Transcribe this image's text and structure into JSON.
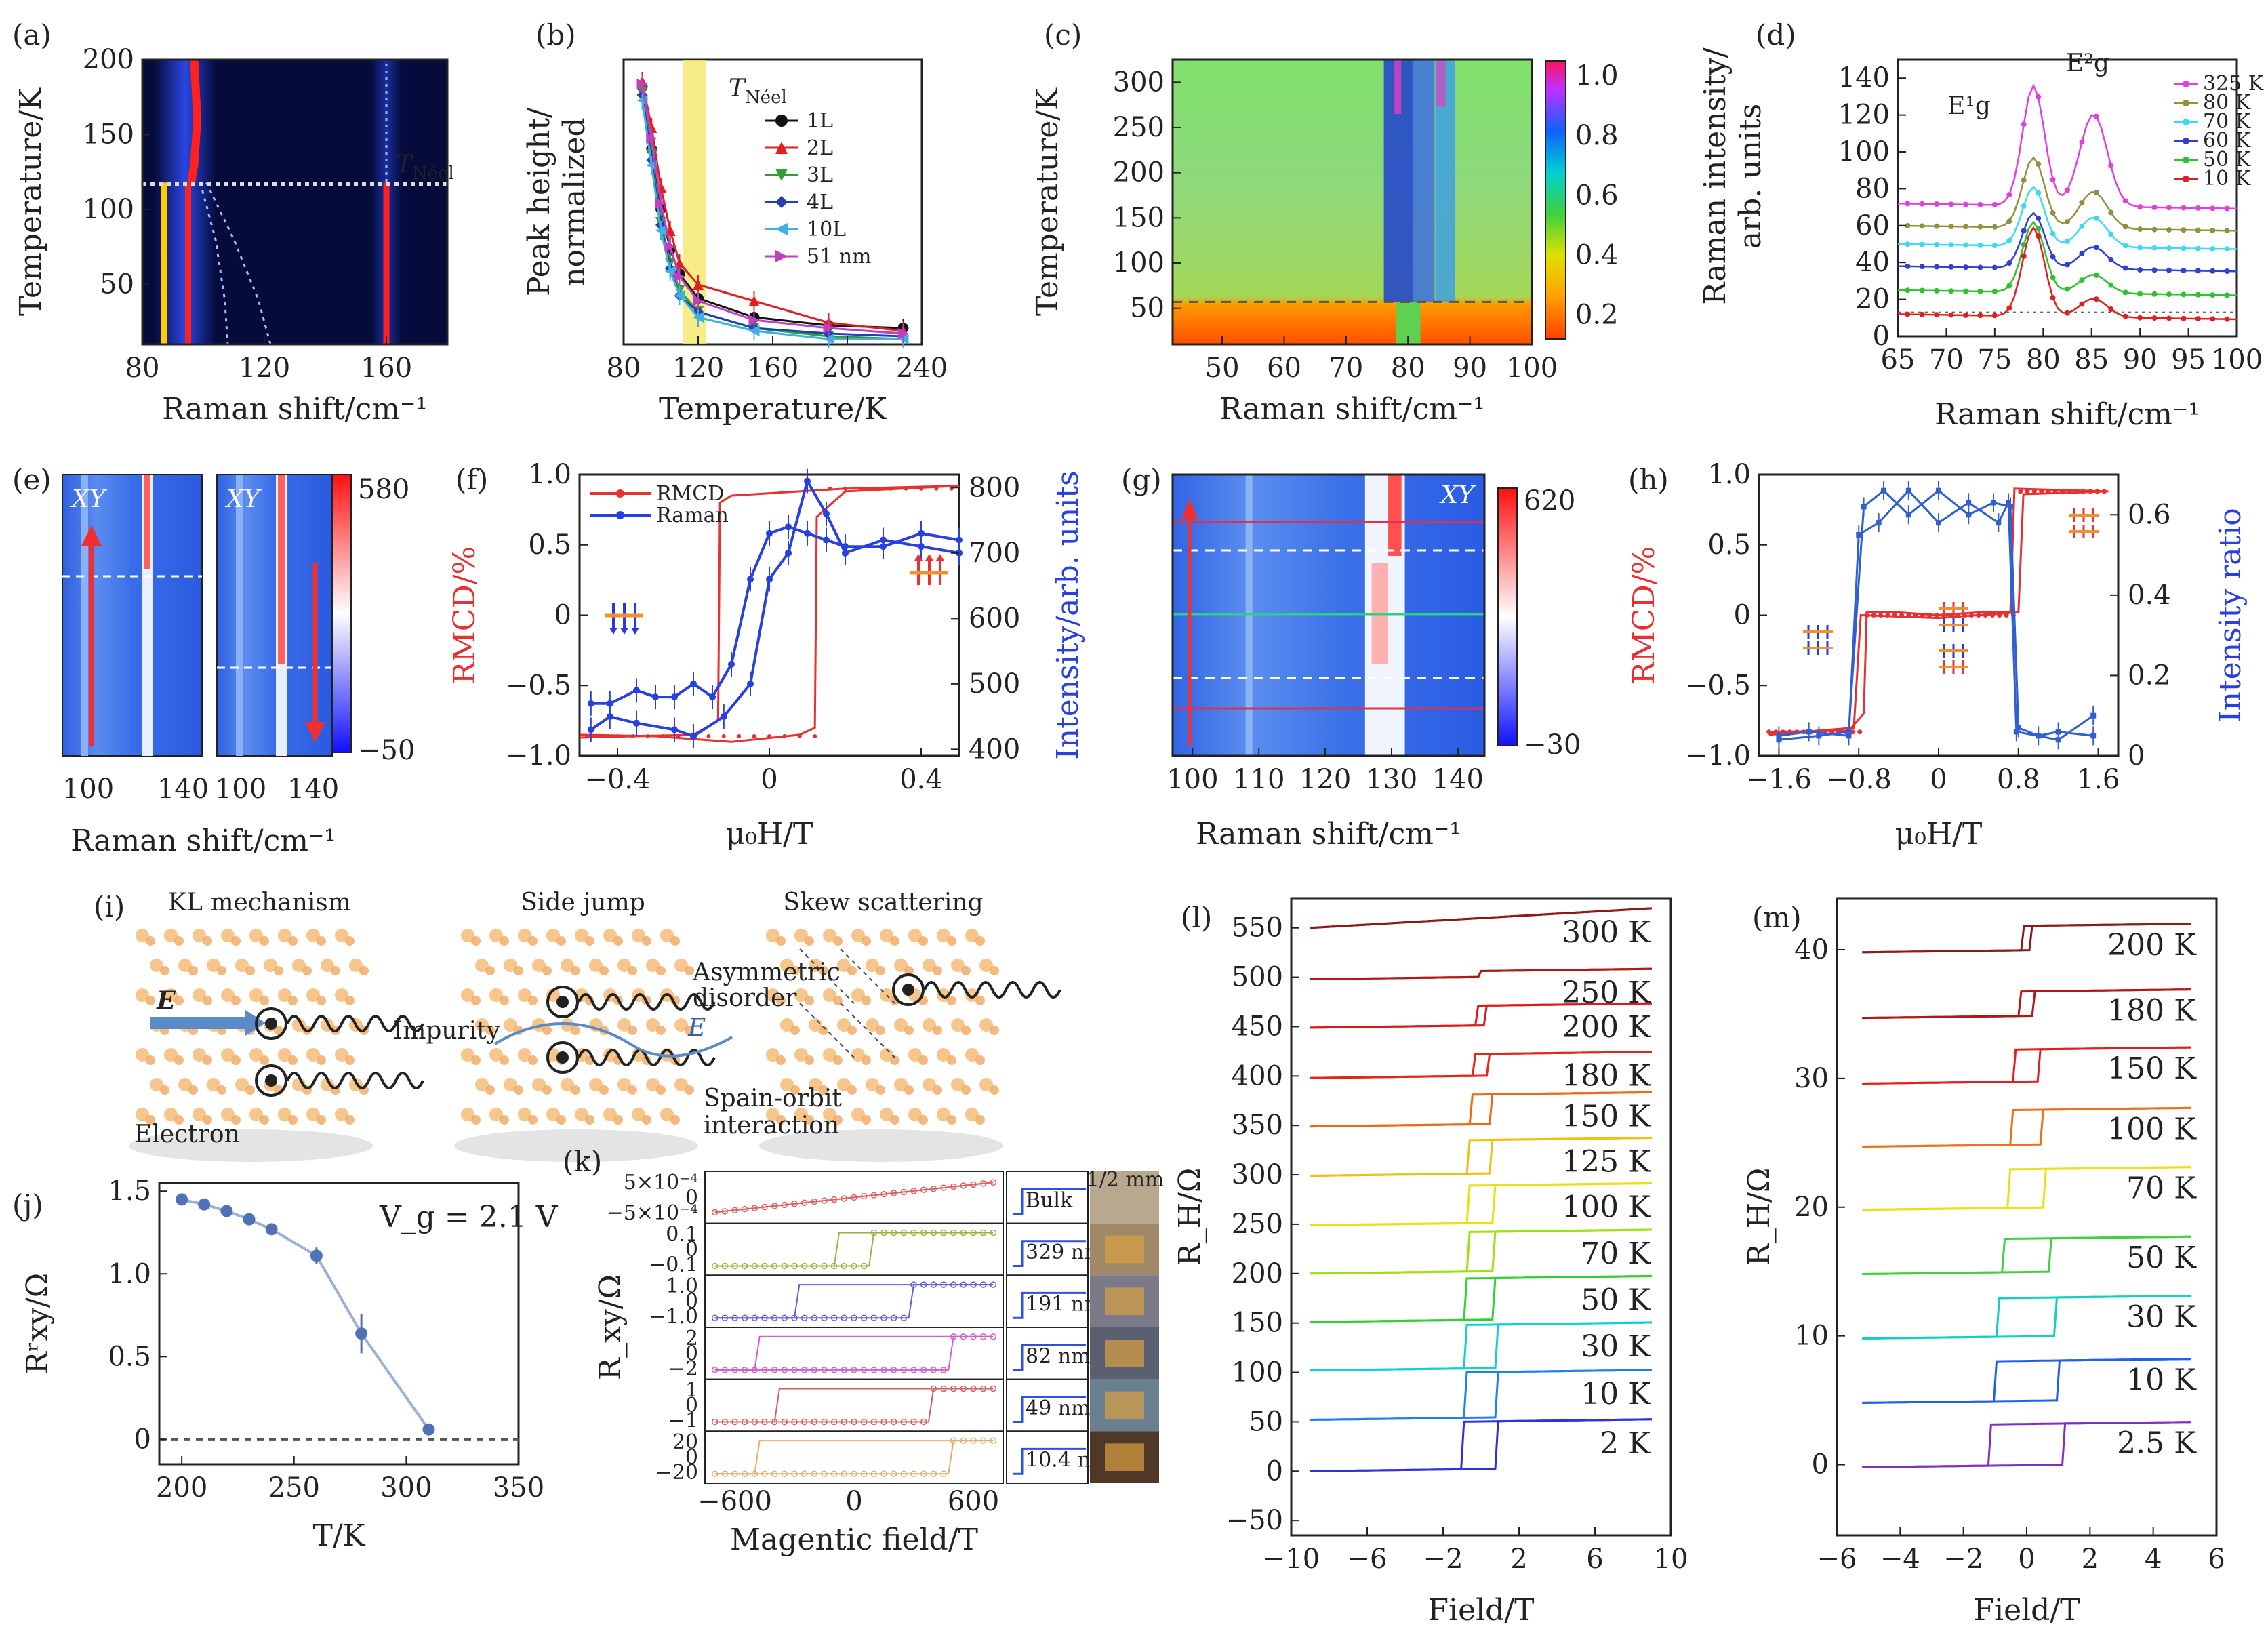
{
  "figure": {
    "background": "#ffffff"
  },
  "chart_data": [
    {
      "panel": "(a)",
      "type": "heatmap",
      "xlabel": "Raman shift/cm⁻¹",
      "ylabel": "Temperature/K",
      "xlim": [
        80,
        180
      ],
      "ylim": [
        10,
        200
      ],
      "xticks": [
        80,
        120,
        160
      ],
      "yticks": [
        50,
        100,
        150,
        200
      ],
      "annotation": "T_Néel",
      "lines": [
        {
          "kind": "vertical",
          "x": 87,
          "y_range": [
            10,
            118
          ],
          "color": "#ffcc00"
        },
        {
          "kind": "vertical",
          "x": 95,
          "y_range": [
            10,
            118
          ],
          "color": "#ff2020"
        },
        {
          "kind": "curve",
          "points": [
            [
              97,
              200
            ],
            [
              98,
              160
            ],
            [
              97,
              130
            ],
            [
              96,
              118
            ]
          ],
          "color": "#ff2020"
        },
        {
          "kind": "dashed-curve",
          "points": [
            [
              99,
              118
            ],
            [
              104,
              80
            ],
            [
              107,
              40
            ],
            [
              108,
              10
            ]
          ],
          "color": "#aab8ff"
        },
        {
          "kind": "dashed-curve",
          "points": [
            [
              101,
              118
            ],
            [
              110,
              80
            ],
            [
              118,
              40
            ],
            [
              122,
              10
            ]
          ],
          "color": "#aab8ff"
        },
        {
          "kind": "vertical-dashed",
          "x": 160,
          "y_range": [
            10,
            200
          ],
          "color": "#aab8ff"
        },
        {
          "kind": "vertical",
          "x": 160,
          "y_range": [
            10,
            118
          ],
          "color": "#ff2020"
        },
        {
          "kind": "horizontal-dotted",
          "y": 117,
          "color": "#dddddd"
        }
      ]
    },
    {
      "panel": "(b)",
      "type": "line",
      "xlabel": "Temperature/K",
      "ylabel": "Peak height/ normalized",
      "xlim": [
        80,
        240
      ],
      "ylim": [
        0,
        1
      ],
      "xticks": [
        80,
        120,
        160,
        200,
        240
      ],
      "annotation": "T_Néel",
      "series": [
        {
          "name": "1L",
          "color": "#111111",
          "marker": "circle",
          "x": [
            90,
            95,
            100,
            105,
            110,
            120,
            150,
            190,
            230
          ],
          "y": [
            0.95,
            0.72,
            0.5,
            0.35,
            0.26,
            0.17,
            0.1,
            0.07,
            0.06
          ]
        },
        {
          "name": "2L",
          "color": "#e02020",
          "marker": "triangle",
          "x": [
            90,
            95,
            100,
            105,
            110,
            120,
            150,
            190,
            230
          ],
          "y": [
            0.97,
            0.8,
            0.58,
            0.42,
            0.3,
            0.22,
            0.16,
            0.08,
            0.05
          ]
        },
        {
          "name": "3L",
          "color": "#30a030",
          "marker": "triangle-down",
          "x": [
            90,
            95,
            100,
            105,
            110,
            120,
            150,
            190,
            230
          ],
          "y": [
            0.93,
            0.7,
            0.45,
            0.3,
            0.2,
            0.12,
            0.06,
            0.03,
            0.02
          ]
        },
        {
          "name": "4L",
          "color": "#2040b0",
          "marker": "diamond",
          "x": [
            90,
            95,
            100,
            105,
            110,
            120,
            150,
            190,
            230
          ],
          "y": [
            0.92,
            0.68,
            0.44,
            0.28,
            0.18,
            0.12,
            0.06,
            0.04,
            0.03
          ]
        },
        {
          "name": "10L",
          "color": "#40b0e0",
          "marker": "triangle-left",
          "x": [
            90,
            95,
            100,
            105,
            110,
            120,
            150,
            190,
            230
          ],
          "y": [
            0.9,
            0.66,
            0.42,
            0.27,
            0.18,
            0.1,
            0.05,
            0.02,
            0.02
          ]
        },
        {
          "name": "51 nm",
          "color": "#c040c0",
          "marker": "triangle-right",
          "x": [
            90,
            95,
            100,
            105,
            110,
            120,
            150,
            190,
            230
          ],
          "y": [
            0.96,
            0.76,
            0.52,
            0.36,
            0.25,
            0.16,
            0.09,
            0.06,
            0.04
          ]
        }
      ]
    },
    {
      "panel": "(c)",
      "type": "heatmap",
      "xlabel": "Raman shift/cm⁻¹",
      "ylabel": "Temperature/K",
      "xlim": [
        42,
        100
      ],
      "ylim": [
        10,
        325
      ],
      "xticks": [
        50,
        60,
        70,
        80,
        90,
        100
      ],
      "yticks": [
        50,
        100,
        150,
        200,
        250,
        300
      ],
      "colorbar": {
        "ticks": [
          0.2,
          0.4,
          0.6,
          0.8,
          1.0
        ],
        "range": [
          0.12,
          1.05
        ]
      },
      "dashed_line_T": 57
    },
    {
      "panel": "(d)",
      "type": "line",
      "xlabel": "Raman shift/cm⁻¹",
      "ylabel": "Raman intensity/ arb. units",
      "xlim": [
        65,
        100
      ],
      "ylim": [
        0,
        150
      ],
      "xticks": [
        65,
        70,
        75,
        80,
        85,
        90,
        95,
        100
      ],
      "yticks": [
        0,
        20,
        40,
        60,
        80,
        100,
        120,
        140
      ],
      "peak_labels": [
        "E¹g",
        "E²g"
      ],
      "series": [
        {
          "name": "325 K",
          "color": "#e040e0",
          "offset": 72,
          "peak1": 65,
          "peak2": 50
        },
        {
          "name": "80 K",
          "color": "#909040",
          "offset": 60,
          "peak1": 38,
          "peak2": 20
        },
        {
          "name": "70 K",
          "color": "#40d8f0",
          "offset": 50,
          "peak1": 32,
          "peak2": 16
        },
        {
          "name": "60 K",
          "color": "#3040d0",
          "offset": 38,
          "peak1": 30,
          "peak2": 12
        },
        {
          "name": "50 K",
          "color": "#30c030",
          "offset": 25,
          "peak1": 38,
          "peak2": 10
        },
        {
          "name": "10 K",
          "color": "#e02020",
          "offset": 12,
          "peak1": 48,
          "peak2": 10
        }
      ]
    },
    {
      "panel": "(e)",
      "type": "heatmap",
      "xlabel": "Raman shift/cm⁻¹",
      "label": "XY",
      "xticks_left": [
        100,
        140
      ],
      "xticks_right": [
        100,
        140
      ],
      "colorbar": {
        "ticks": [
          580,
          -50
        ]
      }
    },
    {
      "panel": "(f)",
      "type": "line",
      "xlabel": "μ₀H/T",
      "ylabel": "RMCD/%",
      "ylabel2": "Intensity/arb. units",
      "xlim": [
        -0.5,
        0.5
      ],
      "ylim": [
        -1,
        1
      ],
      "y2lim": [
        390,
        820
      ],
      "xticks": [
        -0.4,
        0,
        0.4
      ],
      "yticks": [
        -1.0,
        -0.5,
        0,
        0.5,
        1.0
      ],
      "y2ticks": [
        400,
        500,
        600,
        700,
        800
      ],
      "series": [
        {
          "name": "RMCD",
          "color": "#e83030"
        },
        {
          "name": "Raman",
          "color": "#2840e0"
        }
      ]
    },
    {
      "panel": "(g)",
      "type": "heatmap",
      "xlabel": "Raman shift/cm⁻¹",
      "label": "XY",
      "xlim": [
        97,
        144
      ],
      "xticks": [
        100,
        110,
        120,
        130,
        140
      ],
      "colorbar": {
        "ticks": [
          620,
          -30
        ]
      }
    },
    {
      "panel": "(h)",
      "type": "line",
      "xlabel": "μ₀H/T",
      "ylabel": "RMCD/%",
      "ylabel2": "Intensity ratio",
      "xlim": [
        -1.8,
        1.8
      ],
      "ylim": [
        -1,
        1
      ],
      "y2lim": [
        0,
        0.7
      ],
      "xticks": [
        -1.6,
        -0.8,
        0,
        0.8,
        1.6
      ],
      "yticks": [
        -1.0,
        -0.5,
        0,
        0.5,
        1.0
      ],
      "y2ticks": [
        0,
        0.2,
        0.4,
        0.6
      ]
    },
    {
      "panel": "(j)",
      "type": "line",
      "xlabel": "T/K",
      "ylabel": "Rʳxy/Ω",
      "xlim": [
        190,
        350
      ],
      "ylim": [
        -0.15,
        1.55
      ],
      "xticks": [
        200,
        250,
        300,
        350
      ],
      "yticks": [
        0,
        0.5,
        1.0,
        1.5
      ],
      "annotation": "V_g = 2.1 V",
      "series": [
        {
          "color": "#5070b8",
          "x": [
            200,
            210,
            220,
            230,
            240,
            260,
            280,
            310
          ],
          "y": [
            1.45,
            1.42,
            1.38,
            1.33,
            1.27,
            1.11,
            0.64,
            0.06
          ],
          "err": [
            0,
            0,
            0,
            0,
            0,
            0.05,
            0.12,
            0.02
          ]
        }
      ]
    },
    {
      "panel": "(k)",
      "type": "line",
      "xlabel": "Magentic field/T",
      "ylabel": "R_xy/Ω",
      "xticks": [
        -600,
        0,
        600
      ],
      "rows": [
        {
          "color": "#e06060",
          "ticks": [
            "5×10⁻⁴",
            "0",
            "−5×10⁻⁴"
          ],
          "label": "Bulk"
        },
        {
          "color": "#a0b040",
          "ticks": [
            "0.1",
            "0",
            "−0.1"
          ],
          "label": "329 nm"
        },
        {
          "color": "#6060d0",
          "ticks": [
            "1.0",
            "0",
            "−1.0"
          ],
          "label": "191 nm"
        },
        {
          "color": "#d060d0",
          "ticks": [
            "2",
            "0",
            "−2"
          ],
          "label": "82 nm"
        },
        {
          "color": "#d06060",
          "ticks": [
            "1",
            "0",
            "−1"
          ],
          "label": "49 nm"
        },
        {
          "color": "#e0b070",
          "ticks": [
            "20",
            "0",
            "−20"
          ],
          "label": "10.4 nm"
        }
      ],
      "scale_label": "1/2 mm"
    },
    {
      "panel": "(l)",
      "type": "line",
      "xlabel": "Field/T",
      "ylabel": "R_H/Ω",
      "xlim": [
        -10,
        10
      ],
      "ylim": [
        -65,
        580
      ],
      "xticks": [
        -10,
        -6,
        -2,
        2,
        6,
        10
      ],
      "yticks": [
        -50,
        0,
        50,
        100,
        150,
        200,
        250,
        300,
        350,
        400,
        450,
        500,
        550
      ],
      "series": [
        {
          "name": "300 K",
          "color": "#8b1a1a",
          "offset": 550,
          "jump": 0,
          "coercive": 0
        },
        {
          "name": "250 K",
          "color": "#b01818",
          "offset": 498,
          "jump": 6,
          "coercive": 0
        },
        {
          "name": "200 K",
          "color": "#d81a1a",
          "offset": 449,
          "jump": 20,
          "coercive": 0.2
        },
        {
          "name": "180 K",
          "color": "#e02818",
          "offset": 398,
          "jump": 22,
          "coercive": 0.4
        },
        {
          "name": "150 K",
          "color": "#f06810",
          "offset": 349,
          "jump": 30,
          "coercive": 0.5
        },
        {
          "name": "125 K",
          "color": "#f0c010",
          "offset": 299,
          "jump": 34,
          "coercive": 0.6
        },
        {
          "name": "100 K",
          "color": "#e8e010",
          "offset": 249,
          "jump": 38,
          "coercive": 0.65
        },
        {
          "name": "70 K",
          "color": "#a0e010",
          "offset": 200,
          "jump": 40,
          "coercive": 0.7
        },
        {
          "name": "50 K",
          "color": "#30d030",
          "offset": 151,
          "jump": 42,
          "coercive": 0.75
        },
        {
          "name": "30 K",
          "color": "#10d0d0",
          "offset": 102,
          "jump": 44,
          "coercive": 0.8
        },
        {
          "name": "10 K",
          "color": "#2080f0",
          "offset": 52,
          "jump": 46,
          "coercive": 0.85
        },
        {
          "name": "2 K",
          "color": "#3030e0",
          "offset": 0,
          "jump": 48,
          "coercive": 0.9
        }
      ]
    },
    {
      "panel": "(m)",
      "type": "line",
      "xlabel": "Field/T",
      "ylabel": "R_H/Ω",
      "xlim": [
        -6,
        6
      ],
      "ylim": [
        -5.5,
        44
      ],
      "xticks": [
        -6,
        -4,
        -2,
        0,
        2,
        4,
        6
      ],
      "yticks": [
        0,
        10,
        20,
        30,
        40
      ],
      "series": [
        {
          "name": "200 K",
          "color": "#8b1a1a",
          "offset": 39.8,
          "jump": 1.9,
          "coercive": 0.1
        },
        {
          "name": "180 K",
          "color": "#b01818",
          "offset": 34.7,
          "jump": 1.9,
          "coercive": 0.25
        },
        {
          "name": "150 K",
          "color": "#e02020",
          "offset": 29.6,
          "jump": 2.5,
          "coercive": 0.35
        },
        {
          "name": "100 K",
          "color": "#f07018",
          "offset": 24.7,
          "jump": 2.7,
          "coercive": 0.5
        },
        {
          "name": "70 K",
          "color": "#e8e010",
          "offset": 19.8,
          "jump": 3.0,
          "coercive": 0.6
        },
        {
          "name": "50 K",
          "color": "#40d040",
          "offset": 14.8,
          "jump": 2.6,
          "coercive": 0.75
        },
        {
          "name": "30 K",
          "color": "#10d0c0",
          "offset": 9.8,
          "jump": 3.0,
          "coercive": 0.9
        },
        {
          "name": "10 K",
          "color": "#2060f0",
          "offset": 4.8,
          "jump": 3.1,
          "coercive": 1.0
        },
        {
          "name": "2.5 K",
          "color": "#8030c0",
          "offset": -0.2,
          "jump": 3.2,
          "coercive": 1.2
        }
      ]
    }
  ],
  "schematic_i": {
    "panel": "(i)",
    "titles": [
      "KL mechanism",
      "Side jump",
      "Skew scattering"
    ],
    "labels": {
      "field": "E",
      "electron": "Electron",
      "impurity": "Impurity",
      "asym": "Asymmetric disorder",
      "soi": "Spain-orbit interaction"
    }
  }
}
